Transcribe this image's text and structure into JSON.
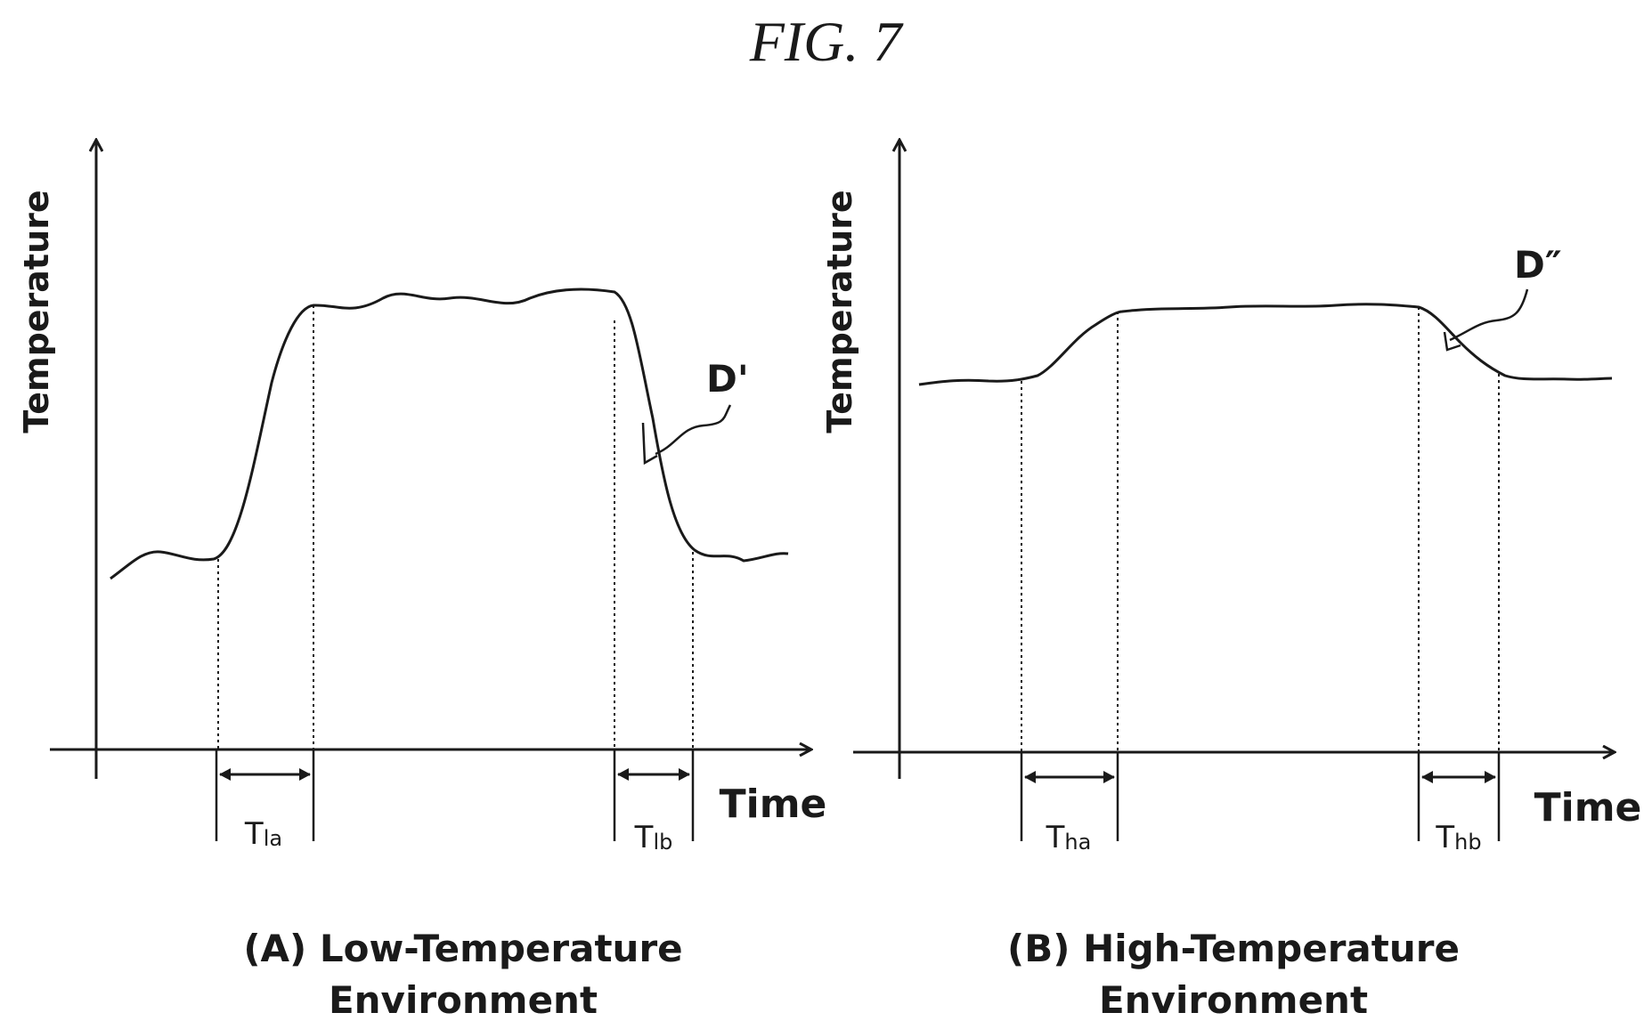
{
  "figure": {
    "title": "FIG. 7"
  },
  "panel_a": {
    "y_axis_label": "Temperature",
    "x_axis_label": "Time",
    "interval_1": {
      "main": "T",
      "sub": "la"
    },
    "interval_2": {
      "main": "T",
      "sub": "lb"
    },
    "marker_label": "D'",
    "caption_line1": "(A)  Low-Temperature",
    "caption_line2": "Environment"
  },
  "panel_b": {
    "y_axis_label": "Temperature",
    "x_axis_label": "Time",
    "interval_1": {
      "main": "T",
      "sub": "ha"
    },
    "interval_2": {
      "main": "T",
      "sub": "hb"
    },
    "marker_label": "D″",
    "caption_line1": "(B)  High-Temperature",
    "caption_line2": "Environment"
  }
}
